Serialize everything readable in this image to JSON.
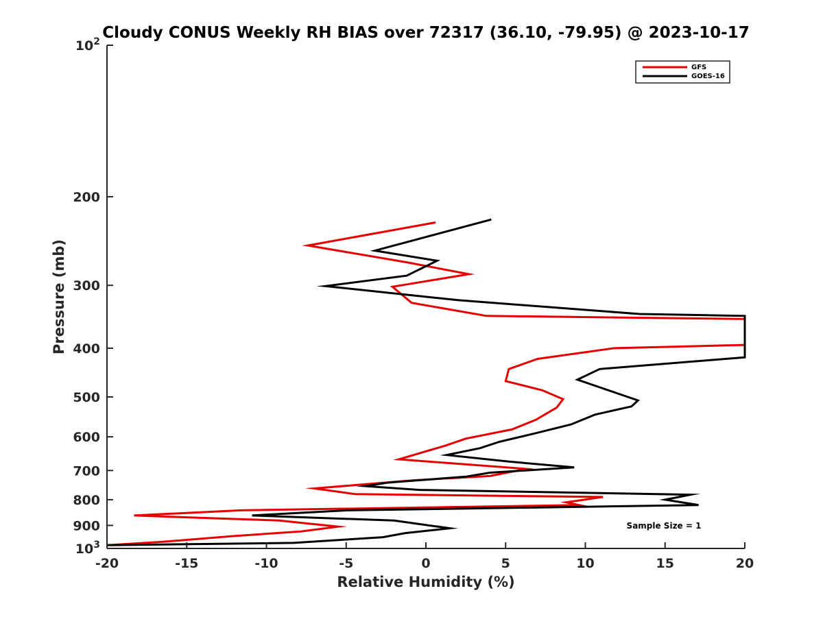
{
  "chart_data": {
    "type": "line",
    "title": "Cloudy CONUS Weekly RH BIAS over 72317 (36.10, -79.95) @ 2023-10-17",
    "xlabel": "Relative Humidity (%)",
    "ylabel": "Pressure (mb)",
    "xlim": [
      -20,
      20
    ],
    "ylim": [
      100,
      1000
    ],
    "y_scale": "log",
    "y_reversed": true,
    "x_ticks": [
      "-20",
      "-15",
      "-10",
      "-5",
      "0",
      "5",
      "10",
      "15",
      "20"
    ],
    "y_ticks": [
      {
        "value": 100,
        "base": "10",
        "exp": "2"
      },
      {
        "value": 200,
        "label": "200"
      },
      {
        "value": 300,
        "label": "300"
      },
      {
        "value": 400,
        "label": "400"
      },
      {
        "value": 500,
        "label": "500"
      },
      {
        "value": 600,
        "label": "600"
      },
      {
        "value": 700,
        "label": "700"
      },
      {
        "value": 800,
        "label": "800"
      },
      {
        "value": 900,
        "label": "900"
      },
      {
        "value": 1000,
        "base": "10",
        "exp": "3"
      }
    ],
    "legend_position": "top-right",
    "annotation": "Sample Size = 1",
    "series": [
      {
        "name": "GFS",
        "color": "#e60000",
        "points": [
          [
            0.6,
            225
          ],
          [
            -7.4,
            250
          ],
          [
            -1.2,
            270
          ],
          [
            2.7,
            285
          ],
          [
            -2.1,
            302
          ],
          [
            -0.9,
            325
          ],
          [
            3.8,
            345
          ],
          [
            20,
            350
          ],
          [
            20,
            394
          ],
          [
            11.8,
            400
          ],
          [
            7.0,
            420
          ],
          [
            5.2,
            440
          ],
          [
            5.0,
            465
          ],
          [
            7.3,
            485
          ],
          [
            8.6,
            505
          ],
          [
            8.2,
            525
          ],
          [
            6.9,
            555
          ],
          [
            5.4,
            580
          ],
          [
            2.5,
            605
          ],
          [
            1.2,
            625
          ],
          [
            -1.7,
            665
          ],
          [
            6.3,
            695
          ],
          [
            4.0,
            718
          ],
          [
            -0.8,
            732
          ],
          [
            -7.0,
            760
          ],
          [
            -4.4,
            780
          ],
          [
            11.1,
            790
          ],
          [
            8.8,
            810
          ],
          [
            9.6,
            820
          ],
          [
            -11.6,
            840
          ],
          [
            -18.3,
            860
          ],
          [
            -9.2,
            880
          ],
          [
            -5.5,
            905
          ],
          [
            -7.8,
            925
          ],
          [
            -12.1,
            945
          ],
          [
            -16.5,
            970
          ],
          [
            -20,
            985
          ]
        ]
      },
      {
        "name": "GOES-16",
        "color": "#000000",
        "points": [
          [
            4.1,
            222
          ],
          [
            -3.2,
            256
          ],
          [
            0.7,
            268
          ],
          [
            -1.2,
            287
          ],
          [
            -6.3,
            301
          ],
          [
            2.0,
            321
          ],
          [
            13.4,
            342
          ],
          [
            20,
            345
          ],
          [
            20,
            417
          ],
          [
            10.9,
            440
          ],
          [
            9.5,
            462
          ],
          [
            13.3,
            508
          ],
          [
            12.9,
            522
          ],
          [
            10.6,
            542
          ],
          [
            9.1,
            567
          ],
          [
            6.7,
            592
          ],
          [
            4.6,
            614
          ],
          [
            3.4,
            632
          ],
          [
            1.3,
            652
          ],
          [
            5.2,
            672
          ],
          [
            9.3,
            690
          ],
          [
            4.0,
            707
          ],
          [
            2.5,
            720
          ],
          [
            -2.4,
            740
          ],
          [
            -3.8,
            752
          ],
          [
            -0.4,
            765
          ],
          [
            16.6,
            782
          ],
          [
            15.0,
            800
          ],
          [
            17.1,
            820
          ],
          [
            -4.9,
            840
          ],
          [
            -10.9,
            860
          ],
          [
            -2.0,
            880
          ],
          [
            1.5,
            912
          ],
          [
            -1.3,
            932
          ],
          [
            -2.7,
            950
          ],
          [
            -8.3,
            975
          ],
          [
            -20,
            985
          ]
        ]
      }
    ]
  }
}
